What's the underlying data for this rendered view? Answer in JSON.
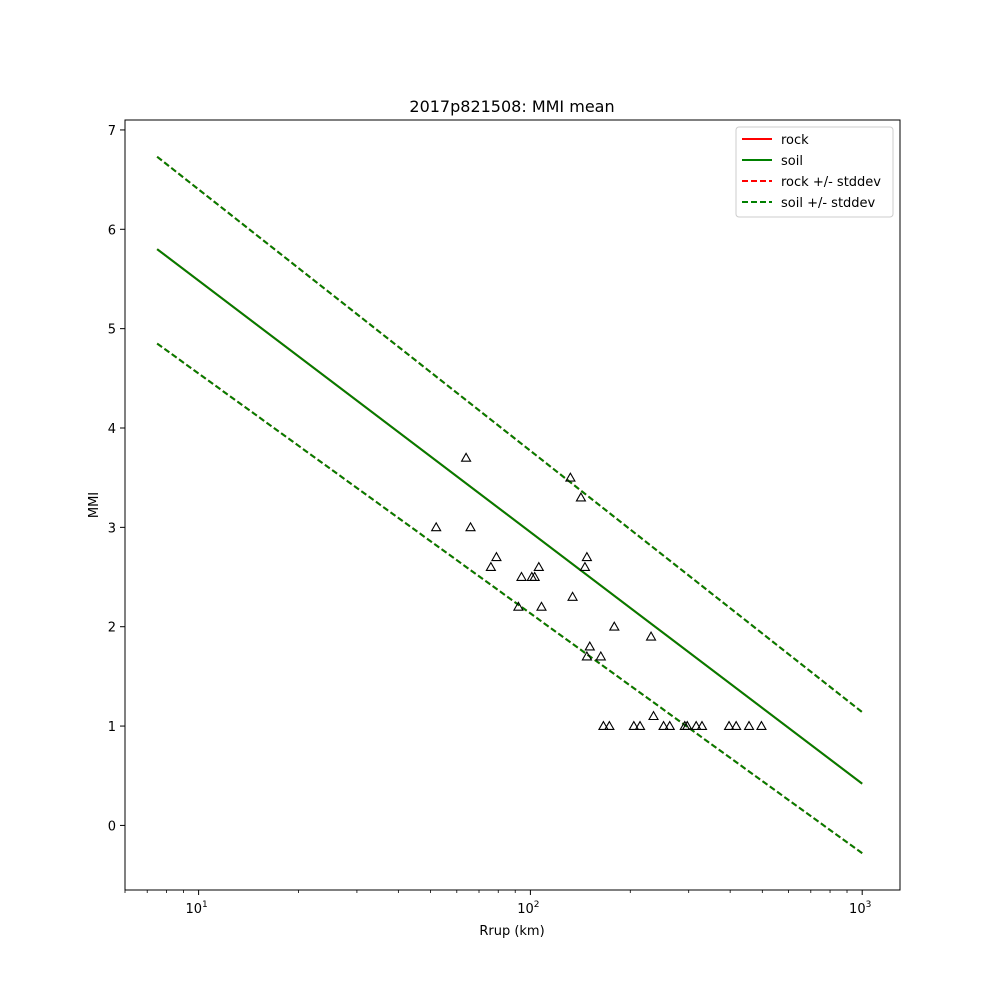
{
  "chart_data": {
    "type": "line",
    "title": "2017p821508: MMI mean",
    "xlabel": "Rrup (km)",
    "ylabel": "MMI",
    "xscale": "log",
    "xlim": [
      6,
      1300
    ],
    "ylim": [
      -0.65,
      7.1
    ],
    "x_ticks": [
      {
        "value": 10,
        "base": "10",
        "exp": "1"
      },
      {
        "value": 100,
        "base": "10",
        "exp": "2"
      },
      {
        "value": 1000,
        "base": "10",
        "exp": "3"
      }
    ],
    "y_ticks": [
      0,
      1,
      2,
      3,
      4,
      5,
      6,
      7
    ],
    "grid": false,
    "legend_position": "top-right",
    "legend": [
      {
        "label": "rock",
        "color": "#ff0000",
        "dash": false
      },
      {
        "label": "soil",
        "color": "#008000",
        "dash": false
      },
      {
        "label": "rock +/- stddev",
        "color": "#ff0000",
        "dash": true
      },
      {
        "label": "soil +/- stddev",
        "color": "#008000",
        "dash": true
      }
    ],
    "lines": [
      {
        "name": "rock",
        "color": "#ff0000",
        "dash": false,
        "x": [
          7.5,
          1000
        ],
        "y": [
          5.8,
          0.42
        ]
      },
      {
        "name": "soil",
        "color": "#008000",
        "dash": false,
        "x": [
          7.5,
          1000
        ],
        "y": [
          5.8,
          0.42
        ]
      },
      {
        "name": "rock + stddev",
        "color": "#ff0000",
        "dash": true,
        "x": [
          7.5,
          1000
        ],
        "y": [
          6.73,
          1.14
        ]
      },
      {
        "name": "rock - stddev",
        "color": "#ff0000",
        "dash": true,
        "x": [
          7.5,
          1000
        ],
        "y": [
          4.85,
          -0.28
        ]
      },
      {
        "name": "soil + stddev",
        "color": "#008000",
        "dash": true,
        "x": [
          7.5,
          1000
        ],
        "y": [
          6.73,
          1.14
        ]
      },
      {
        "name": "soil - stddev",
        "color": "#008000",
        "dash": true,
        "x": [
          7.5,
          1000
        ],
        "y": [
          4.85,
          -0.28
        ]
      }
    ],
    "scatter": {
      "marker": "triangle-open",
      "color": "#000000",
      "points": [
        [
          52,
          3.0
        ],
        [
          64,
          3.7
        ],
        [
          66,
          3.0
        ],
        [
          76,
          2.6
        ],
        [
          79,
          2.7
        ],
        [
          92,
          2.2
        ],
        [
          94,
          2.5
        ],
        [
          101,
          2.5
        ],
        [
          103,
          2.5
        ],
        [
          106,
          2.6
        ],
        [
          108,
          2.2
        ],
        [
          132,
          3.5
        ],
        [
          134,
          2.3
        ],
        [
          142,
          3.3
        ],
        [
          146,
          2.6
        ],
        [
          148,
          2.7
        ],
        [
          148,
          1.7
        ],
        [
          151,
          1.8
        ],
        [
          163,
          1.7
        ],
        [
          166,
          1.0
        ],
        [
          173,
          1.0
        ],
        [
          179,
          2.0
        ],
        [
          205,
          1.0
        ],
        [
          214,
          1.0
        ],
        [
          231,
          1.9
        ],
        [
          235,
          1.1
        ],
        [
          252,
          1.0
        ],
        [
          263,
          1.0
        ],
        [
          292,
          1.0
        ],
        [
          297,
          1.0
        ],
        [
          316,
          1.0
        ],
        [
          329,
          1.0
        ],
        [
          397,
          1.0
        ],
        [
          417,
          1.0
        ],
        [
          456,
          1.0
        ],
        [
          497,
          1.0
        ]
      ]
    }
  }
}
